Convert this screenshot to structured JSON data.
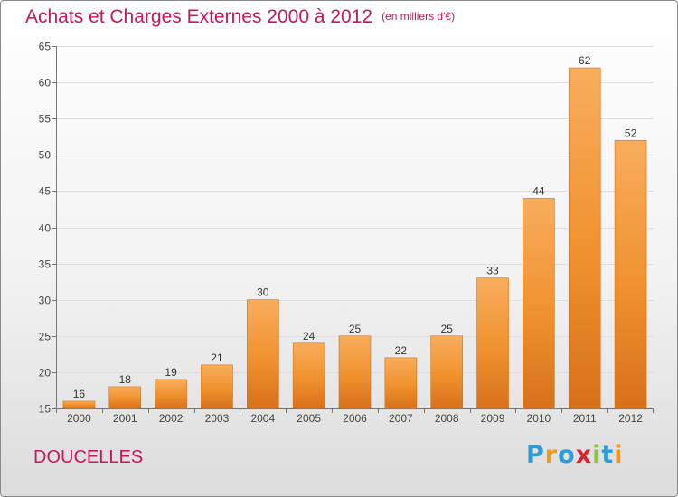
{
  "title": "Achats et Charges Externes 2000 à 2012",
  "unit_label": "(en milliers d'€)",
  "commune": "DOUCELLES",
  "logo": {
    "text": "Proxiti",
    "letters": [
      "P",
      "r",
      "o",
      "x",
      "i",
      "t",
      "i"
    ],
    "colors": [
      "#2e9ad6",
      "#f39a1e",
      "#2e9ad6",
      "#d9262e",
      "#8cc63e",
      "#2e9ad6",
      "#f39a1e"
    ]
  },
  "colors": {
    "bar": "#f0912e",
    "bar_light": "#f8ad5c",
    "bar_dark": "#d6711a",
    "title": "#c8175a"
  },
  "chart_data": {
    "type": "bar",
    "title": "Achats et Charges Externes 2000 à 2012",
    "subtitle": "(en milliers d'€)",
    "categories": [
      "2000",
      "2001",
      "2002",
      "2003",
      "2004",
      "2005",
      "2006",
      "2007",
      "2008",
      "2009",
      "2010",
      "2011",
      "2012"
    ],
    "values": [
      16,
      18,
      19,
      21,
      30,
      24,
      25,
      22,
      25,
      33,
      44,
      62,
      52
    ],
    "xlabel": "",
    "ylabel": "",
    "ylim": [
      15,
      65
    ],
    "yticks": [
      15,
      20,
      25,
      30,
      35,
      40,
      45,
      50,
      55,
      60,
      65
    ],
    "grid": true,
    "legend": "none"
  }
}
